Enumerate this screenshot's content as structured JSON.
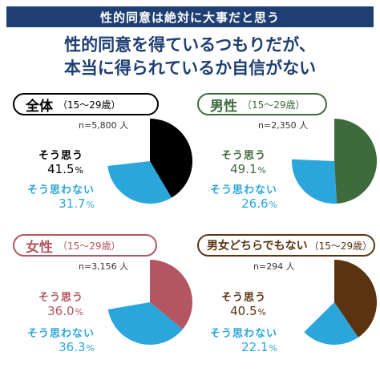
{
  "banner": "性的同意は絶対に大事だと思う",
  "headline": [
    "性的同意を得ているつもりだが、",
    "本当に得られているか自信がない"
  ],
  "colors": {
    "navy": "#1f3f73",
    "not_think": "#2ba6dd",
    "all": "#000000",
    "male": "#3d6b3d",
    "female": "#b35662",
    "neither": "#5a3410"
  },
  "label_think": "そう思う",
  "label_not_think": "そう思わない",
  "unit_percent": "%",
  "chart_data": [
    {
      "type": "pie",
      "group": "全体",
      "age": "（15～29歳）",
      "n": "n=5,800 人",
      "categories": [
        "そう思う",
        "そう思わない"
      ],
      "values": [
        41.5,
        31.7
      ],
      "values_text": [
        "41.5",
        "31.7"
      ],
      "color": "#000000"
    },
    {
      "type": "pie",
      "group": "男性",
      "age": "（15～29歳）",
      "n": "n=2,350 人",
      "categories": [
        "そう思う",
        "そう思わない"
      ],
      "values": [
        49.1,
        26.6
      ],
      "values_text": [
        "49.1",
        "26.6"
      ],
      "color": "#3d6b3d"
    },
    {
      "type": "pie",
      "group": "女性",
      "age": "（15～29歳）",
      "n": "n=3,156 人",
      "categories": [
        "そう思う",
        "そう思わない"
      ],
      "values": [
        36.0,
        36.3
      ],
      "values_text": [
        "36.0",
        "36.3"
      ],
      "color": "#b35662"
    },
    {
      "type": "pie",
      "group": "男女どちらでもない",
      "age": "（15～29歳）",
      "n": "n=294 人",
      "categories": [
        "そう思う",
        "そう思わない"
      ],
      "values": [
        40.5,
        22.1
      ],
      "values_text": [
        "40.5",
        "22.1"
      ],
      "color": "#5a3410"
    }
  ]
}
